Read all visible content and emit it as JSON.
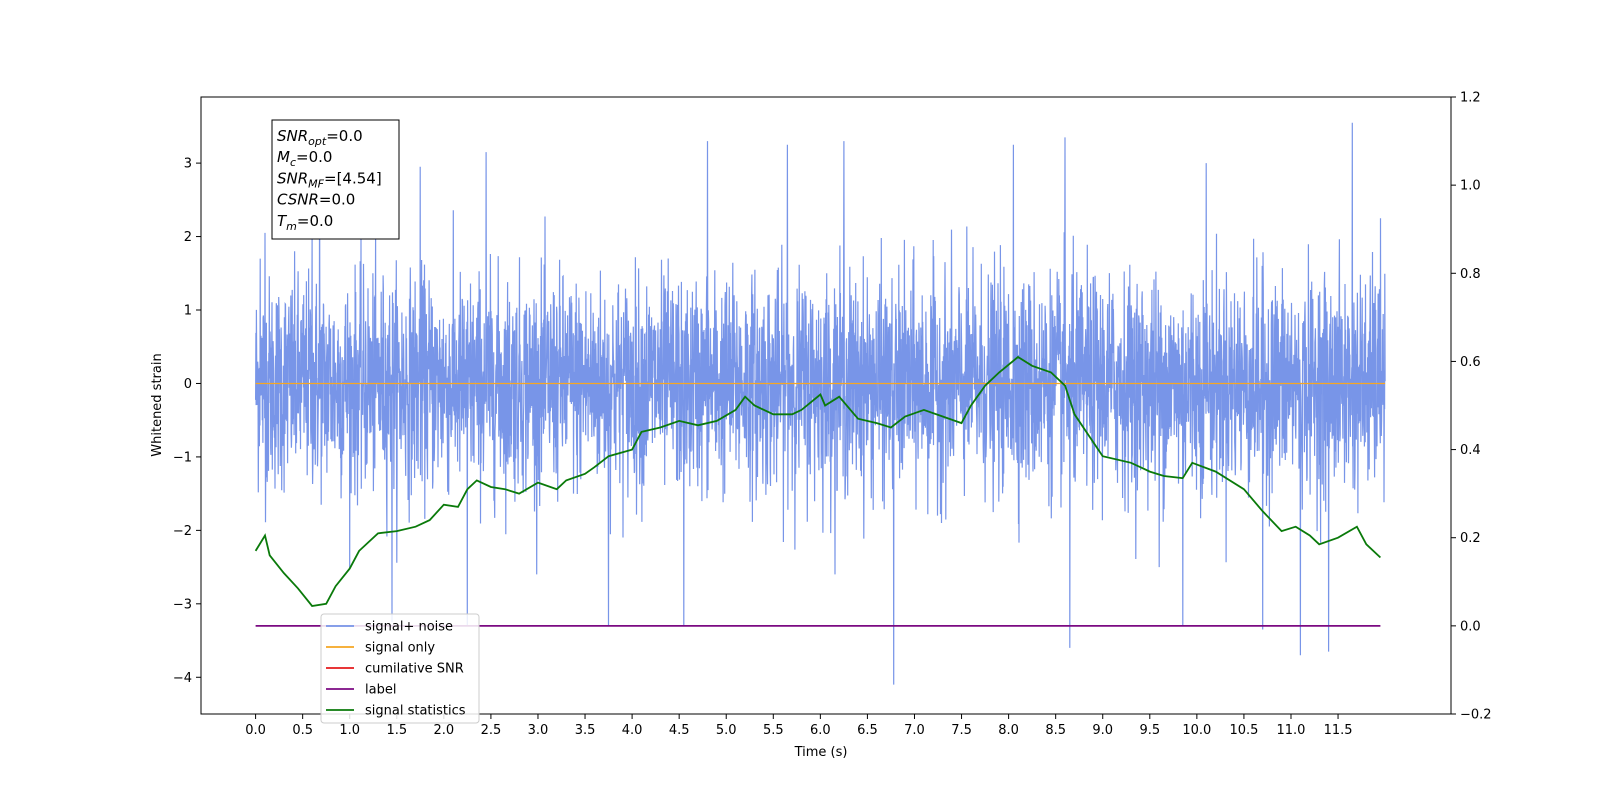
{
  "chart_data": {
    "type": "line",
    "xlabel": "Time (s)",
    "ylabel": "Whitened strain",
    "xlim": [
      -0.58,
      12.7
    ],
    "ylim": [
      -4.5,
      3.9
    ],
    "y2lim": [
      -0.2,
      1.2
    ],
    "xticks": [
      "0.0",
      "0.5",
      "1.0",
      "1.5",
      "2.0",
      "2.5",
      "3.0",
      "3.5",
      "4.0",
      "4.5",
      "5.0",
      "5.5",
      "6.0",
      "6.5",
      "7.0",
      "7.5",
      "8.0",
      "8.5",
      "9.0",
      "9.5",
      "10.0",
      "10.5",
      "11.0",
      "11.5"
    ],
    "yticks": [
      "−4",
      "−3",
      "−2",
      "−1",
      "0",
      "1",
      "2",
      "3"
    ],
    "y2ticks": [
      "−0.2",
      "0.0",
      "0.2",
      "0.4",
      "0.6",
      "0.8",
      "1.0",
      "1.2"
    ],
    "grid": false,
    "legend_position": "lower-left",
    "annotation": {
      "lines": [
        {
          "sym": "SNR",
          "sub": "opt",
          "value": "=0.0"
        },
        {
          "sym": "M",
          "sub": "c",
          "value": "=0.0"
        },
        {
          "sym": "SNR",
          "sub": "MF",
          "value": "=[4.54]"
        },
        {
          "sym": "CSNR",
          "sub": "",
          "value": "=0.0"
        },
        {
          "sym": "T",
          "sub": "m",
          "value": "=0.0"
        }
      ]
    },
    "series": [
      {
        "name": "signal+ noise",
        "color": "#7895e8",
        "axis": "left",
        "style": "noise",
        "x_range": [
          0.0,
          12.0
        ],
        "spikes": [
          {
            "x": 0.05,
            "y": 1.7
          },
          {
            "x": 0.1,
            "y": 2.05
          },
          {
            "x": 0.6,
            "y": 2.0
          },
          {
            "x": 0.68,
            "y": 3.05
          },
          {
            "x": 1.75,
            "y": 2.95
          },
          {
            "x": 2.45,
            "y": 3.15
          },
          {
            "x": 4.8,
            "y": 3.3
          },
          {
            "x": 5.65,
            "y": 3.25
          },
          {
            "x": 6.25,
            "y": 3.3
          },
          {
            "x": 8.05,
            "y": 3.25
          },
          {
            "x": 8.6,
            "y": 3.35
          },
          {
            "x": 10.1,
            "y": 3.0
          },
          {
            "x": 11.65,
            "y": 3.55
          },
          {
            "x": 11.95,
            "y": 2.25
          },
          {
            "x": 1.45,
            "y": -3.25
          },
          {
            "x": 2.25,
            "y": -3.3
          },
          {
            "x": 3.75,
            "y": -3.3
          },
          {
            "x": 4.55,
            "y": -3.3
          },
          {
            "x": 6.78,
            "y": -4.1
          },
          {
            "x": 8.65,
            "y": -3.6
          },
          {
            "x": 10.7,
            "y": -3.35
          },
          {
            "x": 11.1,
            "y": -3.7
          },
          {
            "x": 11.4,
            "y": -3.65
          },
          {
            "x": 9.6,
            "y": -2.5
          },
          {
            "x": 9.85,
            "y": -3.3
          }
        ]
      },
      {
        "name": "signal only",
        "color": "#f5a623",
        "axis": "left",
        "x": [
          0.0,
          12.0
        ],
        "y": [
          0.0,
          0.0
        ]
      },
      {
        "name": "cumilative SNR",
        "color": "#e41a1c",
        "axis": "right",
        "x": [],
        "y": []
      },
      {
        "name": "label",
        "color": "#7b0a82",
        "axis": "right",
        "x": [
          0.0,
          11.95
        ],
        "y": [
          0.0,
          0.0
        ]
      },
      {
        "name": "signal statistics",
        "color": "#0a7a0a",
        "axis": "right",
        "x": [
          0.0,
          0.1,
          0.15,
          0.3,
          0.45,
          0.6,
          0.75,
          0.85,
          1.0,
          1.1,
          1.3,
          1.5,
          1.7,
          1.85,
          2.0,
          2.15,
          2.25,
          2.35,
          2.5,
          2.65,
          2.8,
          3.0,
          3.2,
          3.3,
          3.5,
          3.6,
          3.75,
          4.0,
          4.1,
          4.3,
          4.5,
          4.7,
          4.9,
          5.1,
          5.2,
          5.3,
          5.5,
          5.7,
          5.8,
          6.0,
          6.05,
          6.2,
          6.4,
          6.6,
          6.75,
          6.9,
          7.1,
          7.3,
          7.5,
          7.6,
          7.75,
          7.9,
          8.1,
          8.25,
          8.45,
          8.6,
          8.7,
          9.0,
          9.3,
          9.5,
          9.65,
          9.85,
          9.95,
          10.2,
          10.5,
          10.7,
          10.9,
          11.05,
          11.2,
          11.3,
          11.5,
          11.7,
          11.8,
          11.95
        ],
        "y": [
          0.17,
          0.205,
          0.16,
          0.12,
          0.085,
          0.045,
          0.05,
          0.09,
          0.13,
          0.17,
          0.21,
          0.215,
          0.225,
          0.24,
          0.275,
          0.27,
          0.31,
          0.33,
          0.315,
          0.31,
          0.3,
          0.325,
          0.31,
          0.33,
          0.345,
          0.36,
          0.385,
          0.4,
          0.44,
          0.45,
          0.465,
          0.455,
          0.465,
          0.49,
          0.52,
          0.5,
          0.48,
          0.48,
          0.49,
          0.525,
          0.5,
          0.52,
          0.47,
          0.46,
          0.45,
          0.475,
          0.49,
          0.475,
          0.46,
          0.5,
          0.545,
          0.575,
          0.61,
          0.59,
          0.575,
          0.545,
          0.48,
          0.385,
          0.37,
          0.35,
          0.34,
          0.335,
          0.37,
          0.35,
          0.31,
          0.26,
          0.215,
          0.225,
          0.205,
          0.185,
          0.2,
          0.225,
          0.185,
          0.155
        ]
      }
    ]
  }
}
